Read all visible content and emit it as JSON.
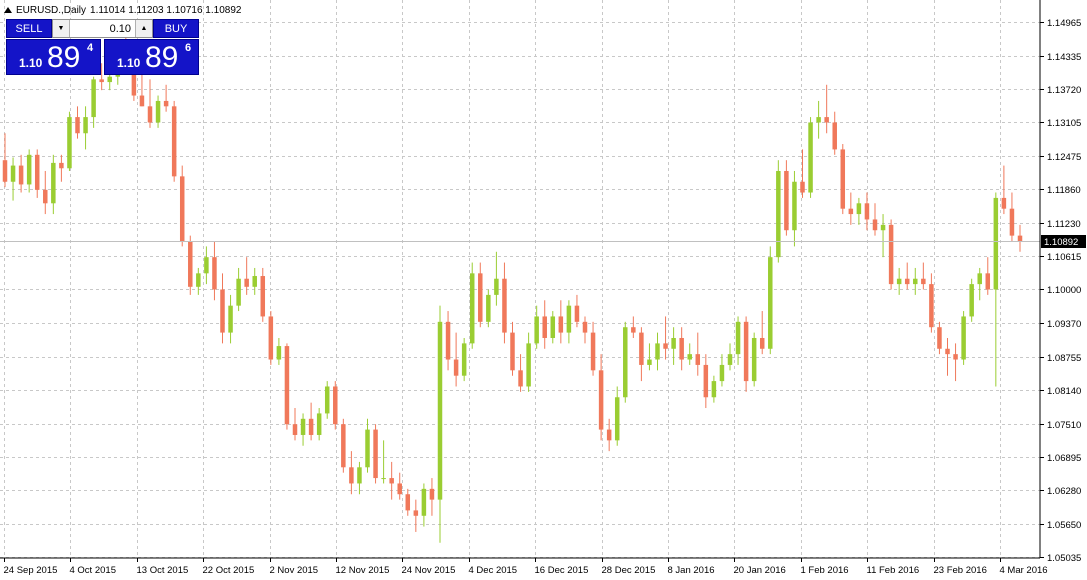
{
  "header": {
    "symbol": "EURUSD.,Daily",
    "ohlc": "1.11014 1.11203 1.10716 1.10892"
  },
  "trade_panel": {
    "sell_label": "SELL",
    "buy_label": "BUY",
    "volume": "0.10",
    "sell_price_prefix": "1.10",
    "sell_price_big": "89",
    "sell_price_sup": "4",
    "buy_price_prefix": "1.10",
    "buy_price_big": "89",
    "buy_price_sup": "6"
  },
  "colors": {
    "bull": "#9acd32",
    "bear": "#f0785a",
    "grid": "#c8c8c8",
    "bid_line": "#c0c0c0",
    "price_tag_bg": "#000000",
    "price_tag_fg": "#ffffff",
    "panel_blue": "#1414c8"
  },
  "chart_data": {
    "type": "candlestick",
    "y_ticks": [
      "1.14965",
      "1.14335",
      "1.13720",
      "1.13105",
      "1.12475",
      "1.11860",
      "1.11230",
      "1.10615",
      "1.10000",
      "1.09370",
      "1.08755",
      "1.08140",
      "1.07510",
      "1.06895",
      "1.06280",
      "1.05650",
      "1.05035"
    ],
    "x_ticks": [
      "24 Sep 2015",
      "4 Oct 2015",
      "13 Oct 2015",
      "22 Oct 2015",
      "2 Nov 2015",
      "12 Nov 2015",
      "24 Nov 2015",
      "4 Dec 2015",
      "16 Dec 2015",
      "28 Dec 2015",
      "8 Jan 2016",
      "20 Jan 2016",
      "1 Feb 2016",
      "11 Feb 2016",
      "23 Feb 2016",
      "4 Mar 2016"
    ],
    "ylim": [
      1.05,
      1.151
    ],
    "current_price": "1.10892",
    "current_price_value": 1.10892,
    "grid": true,
    "candles": [
      [
        1.124,
        1.129,
        1.119,
        1.12
      ],
      [
        1.12,
        1.1245,
        1.1165,
        1.123
      ],
      [
        1.123,
        1.125,
        1.118,
        1.1195
      ],
      [
        1.1195,
        1.126,
        1.118,
        1.125
      ],
      [
        1.125,
        1.126,
        1.117,
        1.1185
      ],
      [
        1.1185,
        1.122,
        1.114,
        1.116
      ],
      [
        1.116,
        1.125,
        1.114,
        1.1235
      ],
      [
        1.1235,
        1.125,
        1.12,
        1.1225
      ],
      [
        1.1225,
        1.133,
        1.122,
        1.132
      ],
      [
        1.132,
        1.134,
        1.128,
        1.129
      ],
      [
        1.129,
        1.134,
        1.126,
        1.132
      ],
      [
        1.132,
        1.1395,
        1.13,
        1.139
      ],
      [
        1.139,
        1.142,
        1.137,
        1.1385
      ],
      [
        1.1385,
        1.142,
        1.137,
        1.1395
      ],
      [
        1.1395,
        1.146,
        1.138,
        1.1455
      ],
      [
        1.1455,
        1.147,
        1.14,
        1.141
      ],
      [
        1.141,
        1.142,
        1.135,
        1.136
      ],
      [
        1.136,
        1.14,
        1.134,
        1.134
      ],
      [
        1.134,
        1.139,
        1.13,
        1.131
      ],
      [
        1.131,
        1.136,
        1.13,
        1.135
      ],
      [
        1.135,
        1.138,
        1.133,
        1.134
      ],
      [
        1.134,
        1.135,
        1.12,
        1.121
      ],
      [
        1.121,
        1.123,
        1.108,
        1.109
      ],
      [
        1.109,
        1.11,
        1.099,
        1.1005
      ],
      [
        1.1005,
        1.104,
        1.099,
        1.103
      ],
      [
        1.103,
        1.108,
        1.101,
        1.106
      ],
      [
        1.106,
        1.109,
        1.098,
        1.1
      ],
      [
        1.1,
        1.103,
        1.09,
        1.092
      ],
      [
        1.092,
        1.099,
        1.09,
        1.097
      ],
      [
        1.097,
        1.104,
        1.096,
        1.102
      ],
      [
        1.102,
        1.106,
        1.099,
        1.1005
      ],
      [
        1.1005,
        1.104,
        1.099,
        1.1025
      ],
      [
        1.1025,
        1.104,
        1.094,
        1.095
      ],
      [
        1.095,
        1.096,
        1.086,
        1.087
      ],
      [
        1.087,
        1.091,
        1.086,
        1.0895
      ],
      [
        1.0895,
        1.09,
        1.074,
        1.075
      ],
      [
        1.075,
        1.078,
        1.072,
        1.073
      ],
      [
        1.073,
        1.077,
        1.071,
        1.076
      ],
      [
        1.076,
        1.079,
        1.072,
        1.073
      ],
      [
        1.073,
        1.078,
        1.072,
        1.077
      ],
      [
        1.077,
        1.083,
        1.076,
        1.082
      ],
      [
        1.082,
        1.083,
        1.074,
        1.075
      ],
      [
        1.075,
        1.076,
        1.066,
        1.067
      ],
      [
        1.067,
        1.07,
        1.062,
        1.064
      ],
      [
        1.064,
        1.068,
        1.062,
        1.067
      ],
      [
        1.067,
        1.076,
        1.066,
        1.074
      ],
      [
        1.074,
        1.075,
        1.064,
        1.065
      ],
      [
        1.065,
        1.072,
        1.064,
        1.065
      ],
      [
        1.065,
        1.068,
        1.061,
        1.064
      ],
      [
        1.064,
        1.066,
        1.061,
        1.062
      ],
      [
        1.062,
        1.063,
        1.058,
        1.059
      ],
      [
        1.059,
        1.061,
        1.055,
        1.058
      ],
      [
        1.058,
        1.064,
        1.056,
        1.063
      ],
      [
        1.063,
        1.065,
        1.058,
        1.061
      ],
      [
        1.061,
        1.097,
        1.053,
        1.094
      ],
      [
        1.094,
        1.096,
        1.085,
        1.087
      ],
      [
        1.087,
        1.092,
        1.082,
        1.084
      ],
      [
        1.084,
        1.091,
        1.083,
        1.09
      ],
      [
        1.09,
        1.105,
        1.089,
        1.103
      ],
      [
        1.103,
        1.105,
        1.093,
        1.094
      ],
      [
        1.094,
        1.1,
        1.093,
        1.099
      ],
      [
        1.099,
        1.107,
        1.097,
        1.102
      ],
      [
        1.102,
        1.105,
        1.09,
        1.092
      ],
      [
        1.092,
        1.094,
        1.084,
        1.085
      ],
      [
        1.085,
        1.088,
        1.081,
        1.082
      ],
      [
        1.082,
        1.092,
        1.081,
        1.09
      ],
      [
        1.09,
        1.097,
        1.089,
        1.095
      ],
      [
        1.095,
        1.098,
        1.089,
        1.091
      ],
      [
        1.091,
        1.096,
        1.09,
        1.095
      ],
      [
        1.095,
        1.098,
        1.09,
        1.092
      ],
      [
        1.092,
        1.098,
        1.09,
        1.097
      ],
      [
        1.097,
        1.099,
        1.093,
        1.094
      ],
      [
        1.094,
        1.095,
        1.09,
        1.092
      ],
      [
        1.092,
        1.094,
        1.084,
        1.085
      ],
      [
        1.085,
        1.088,
        1.072,
        1.074
      ],
      [
        1.074,
        1.076,
        1.07,
        1.072
      ],
      [
        1.072,
        1.082,
        1.071,
        1.08
      ],
      [
        1.08,
        1.094,
        1.079,
        1.093
      ],
      [
        1.093,
        1.095,
        1.091,
        1.092
      ],
      [
        1.092,
        1.093,
        1.083,
        1.086
      ],
      [
        1.086,
        1.09,
        1.085,
        1.087
      ],
      [
        1.087,
        1.092,
        1.085,
        1.09
      ],
      [
        1.09,
        1.095,
        1.087,
        1.089
      ],
      [
        1.089,
        1.093,
        1.086,
        1.091
      ],
      [
        1.091,
        1.093,
        1.085,
        1.087
      ],
      [
        1.087,
        1.09,
        1.086,
        1.088
      ],
      [
        1.088,
        1.092,
        1.084,
        1.086
      ],
      [
        1.086,
        1.088,
        1.078,
        1.08
      ],
      [
        1.08,
        1.084,
        1.079,
        1.083
      ],
      [
        1.083,
        1.088,
        1.082,
        1.086
      ],
      [
        1.086,
        1.09,
        1.085,
        1.088
      ],
      [
        1.088,
        1.095,
        1.086,
        1.094
      ],
      [
        1.094,
        1.095,
        1.081,
        1.083
      ],
      [
        1.083,
        1.092,
        1.082,
        1.091
      ],
      [
        1.091,
        1.096,
        1.088,
        1.089
      ],
      [
        1.089,
        1.108,
        1.088,
        1.106
      ],
      [
        1.106,
        1.124,
        1.105,
        1.122
      ],
      [
        1.122,
        1.124,
        1.11,
        1.111
      ],
      [
        1.111,
        1.122,
        1.108,
        1.12
      ],
      [
        1.12,
        1.126,
        1.117,
        1.118
      ],
      [
        1.118,
        1.132,
        1.117,
        1.131
      ],
      [
        1.131,
        1.135,
        1.128,
        1.132
      ],
      [
        1.132,
        1.138,
        1.129,
        1.131
      ],
      [
        1.131,
        1.133,
        1.125,
        1.126
      ],
      [
        1.126,
        1.127,
        1.114,
        1.115
      ],
      [
        1.115,
        1.118,
        1.112,
        1.114
      ],
      [
        1.114,
        1.117,
        1.112,
        1.116
      ],
      [
        1.116,
        1.118,
        1.111,
        1.113
      ],
      [
        1.113,
        1.116,
        1.11,
        1.111
      ],
      [
        1.111,
        1.114,
        1.106,
        1.112
      ],
      [
        1.112,
        1.113,
        1.1,
        1.101
      ],
      [
        1.101,
        1.104,
        1.099,
        1.102
      ],
      [
        1.102,
        1.105,
        1.1,
        1.101
      ],
      [
        1.101,
        1.104,
        1.099,
        1.102
      ],
      [
        1.102,
        1.105,
        1.1,
        1.101
      ],
      [
        1.101,
        1.103,
        1.092,
        1.093
      ],
      [
        1.093,
        1.094,
        1.088,
        1.089
      ],
      [
        1.089,
        1.091,
        1.084,
        1.088
      ],
      [
        1.088,
        1.09,
        1.083,
        1.087
      ],
      [
        1.087,
        1.096,
        1.086,
        1.095
      ],
      [
        1.095,
        1.102,
        1.094,
        1.101
      ],
      [
        1.101,
        1.104,
        1.098,
        1.103
      ],
      [
        1.103,
        1.106,
        1.099,
        1.1
      ],
      [
        1.1,
        1.118,
        1.082,
        1.117
      ],
      [
        1.117,
        1.123,
        1.114,
        1.115
      ],
      [
        1.115,
        1.118,
        1.109,
        1.11
      ],
      [
        1.11,
        1.112,
        1.107,
        1.109
      ]
    ]
  }
}
